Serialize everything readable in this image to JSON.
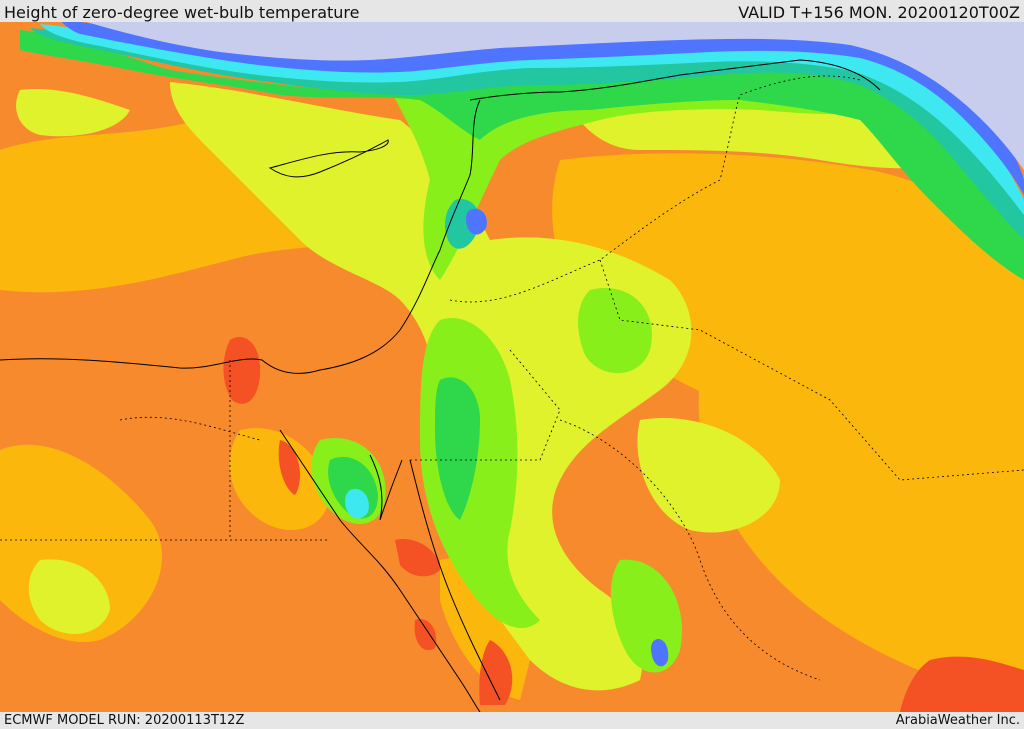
{
  "header": {
    "title": "Height of zero-degree wet-bulb temperature",
    "valid": "VALID T+156 MON. 20200120T00Z"
  },
  "footer": {
    "model_run": "ECMWF MODEL RUN: 20200113T12Z",
    "credit": "ArabiaWeather Inc."
  },
  "palette": {
    "lavender": "#c8cdee",
    "blue": "#4f74ff",
    "cyan": "#3de8f0",
    "teal": "#22c6a0",
    "green": "#2fd84a",
    "lime": "#88ef1a",
    "yellow_green": "#dff22b",
    "amber": "#fbb70c",
    "orange": "#f88a2e",
    "red_orange": "#f45224",
    "land_border": "#000000"
  }
}
